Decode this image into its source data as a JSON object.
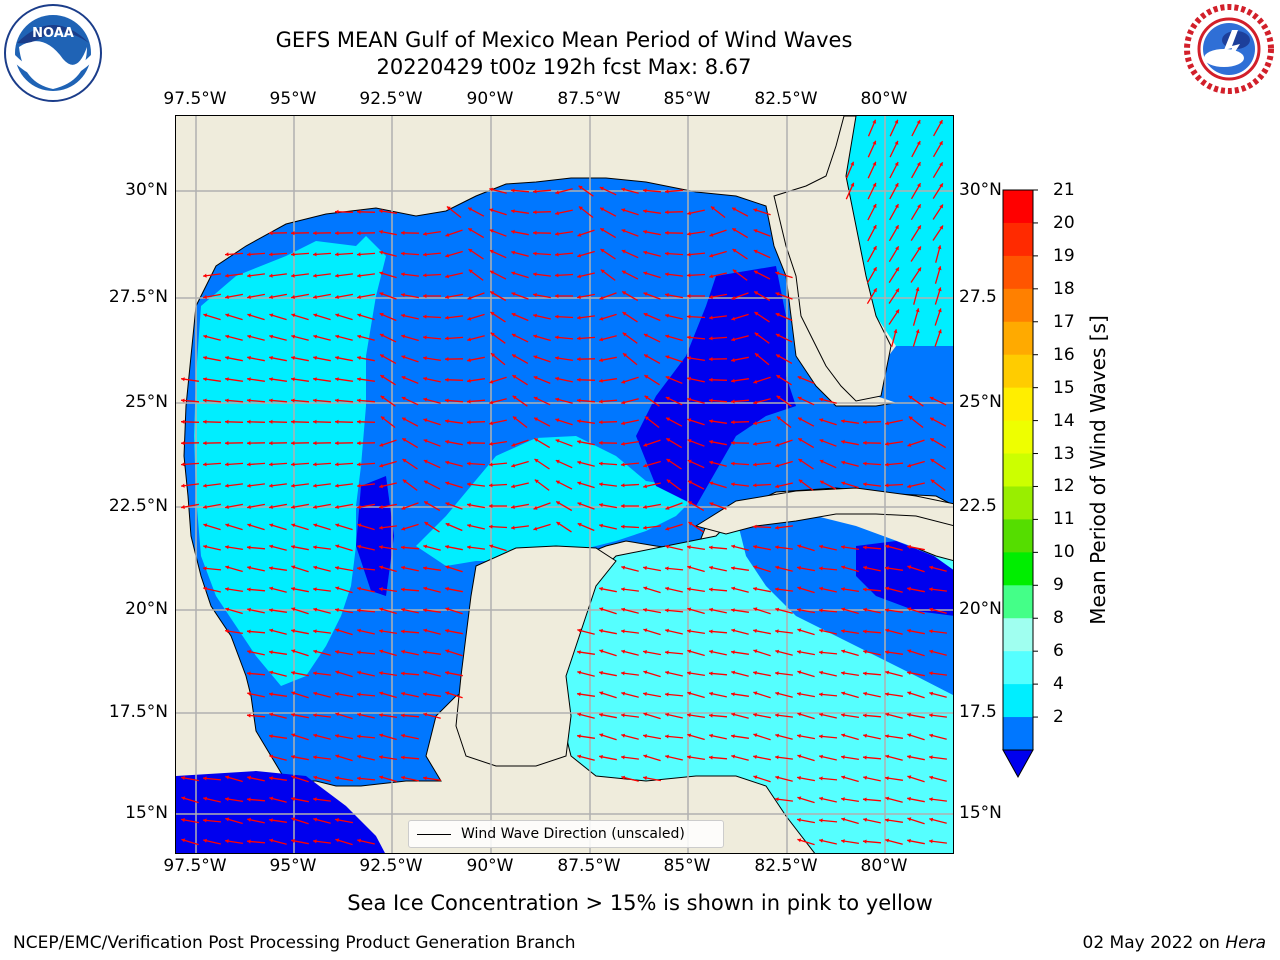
{
  "title": {
    "line1": "GEFS MEAN Gulf of Mexico Mean Period of Wind Waves",
    "line2": "20220429 t00z 192h fcst   Max: 8.67"
  },
  "axes": {
    "lon_top": [
      "97.5°W",
      "95°W",
      "92.5°W",
      "90°W",
      "87.5°W",
      "85°W",
      "82.5°W",
      "80°W"
    ],
    "lon_bottom": [
      "97.5°W",
      "95°W",
      "92.5°W",
      "90°W",
      "87.5°W",
      "85°W",
      "82.5°W",
      "80°W"
    ],
    "lat_left": [
      "30°N",
      "27.5°N",
      "25°N",
      "22.5°N",
      "20°N",
      "17.5°N",
      "15°N"
    ],
    "lat_right": [
      "30°N",
      "27.5",
      "25°N",
      "22.5",
      "20°N",
      "17.5",
      "15°N"
    ]
  },
  "colorbar": {
    "label": "Mean Period of Wind Waves [s]",
    "ticks": [
      "21",
      "20",
      "19",
      "18",
      "17",
      "16",
      "15",
      "14",
      "13",
      "12",
      "11",
      "10",
      "9",
      "8",
      "6",
      "4",
      "2"
    ],
    "colors": [
      "#ff0000",
      "#ff2a00",
      "#ff5500",
      "#ff8000",
      "#ffaa00",
      "#ffcc00",
      "#ffee00",
      "#eeff00",
      "#ccff00",
      "#99ee00",
      "#55dd00",
      "#00ee00",
      "#44ff88",
      "#a0fff0",
      "#55ffff",
      "#00eeff",
      "#0077ff",
      "#0000ee"
    ],
    "extend_color": "#0000ee"
  },
  "legend": {
    "text": "Wind Wave Direction (unscaled)"
  },
  "subtitle": "Sea Ice Concentration > 15% is shown in pink to yellow",
  "footer": {
    "left": "NCEP/EMC/Verification Post Processing Product Generation Branch",
    "date": "02 May 2022 on",
    "machine": "Hera"
  },
  "logos": {
    "noaa": {
      "icon": "noaa-logo",
      "text": "NOAA"
    },
    "nws": {
      "icon": "nws-logo",
      "text": "NATIONAL WEATHER SERVICE"
    }
  },
  "map_colors": {
    "land": "#efecdc",
    "water_level_2_4": "#0077ff",
    "water_level_4_6": "#00eeff",
    "water_level_6_8": "#55ffff",
    "water_level_8_9": "#a0fff0",
    "water_below_2": "#0000ee",
    "arrow": "#ff0000",
    "grid": "#b0b0b0"
  }
}
